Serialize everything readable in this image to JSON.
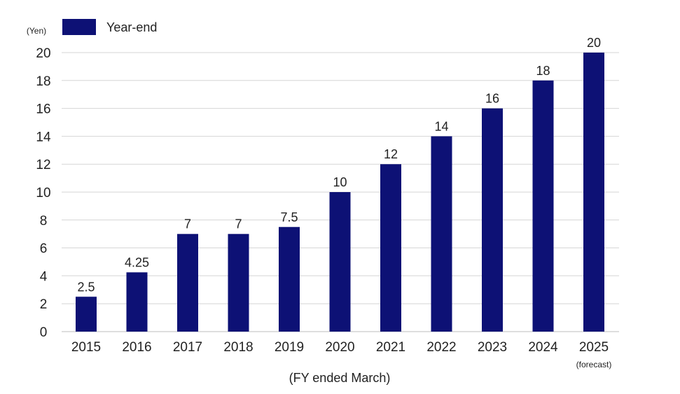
{
  "chart_data": {
    "type": "bar",
    "ylabel": "(Yen)",
    "xlabel": "(FY ended March)",
    "ylim": [
      0,
      20
    ],
    "yticks": [
      0,
      2,
      4,
      6,
      8,
      10,
      12,
      14,
      16,
      18,
      20
    ],
    "grid": true,
    "legend_position": "top-left",
    "categories": [
      "2015",
      "2016",
      "2017",
      "2018",
      "2019",
      "2020",
      "2021",
      "2022",
      "2023",
      "2024",
      "2025"
    ],
    "category_notes": [
      "",
      "",
      "",
      "",
      "",
      "",
      "",
      "",
      "",
      "",
      "(forecast)"
    ],
    "series": [
      {
        "name": "Year-end",
        "color": "#0d1175",
        "values": [
          2.5,
          4.25,
          7,
          7,
          7.5,
          10,
          12,
          14,
          16,
          18,
          20
        ],
        "value_labels": [
          "2.5",
          "4.25",
          "7",
          "7",
          "7.5",
          "10",
          "12",
          "14",
          "16",
          "18",
          "20"
        ]
      }
    ]
  },
  "colors": {
    "bar": "#0d1175",
    "grid": "#d6d6d6",
    "axis": "#bdbdbd"
  }
}
